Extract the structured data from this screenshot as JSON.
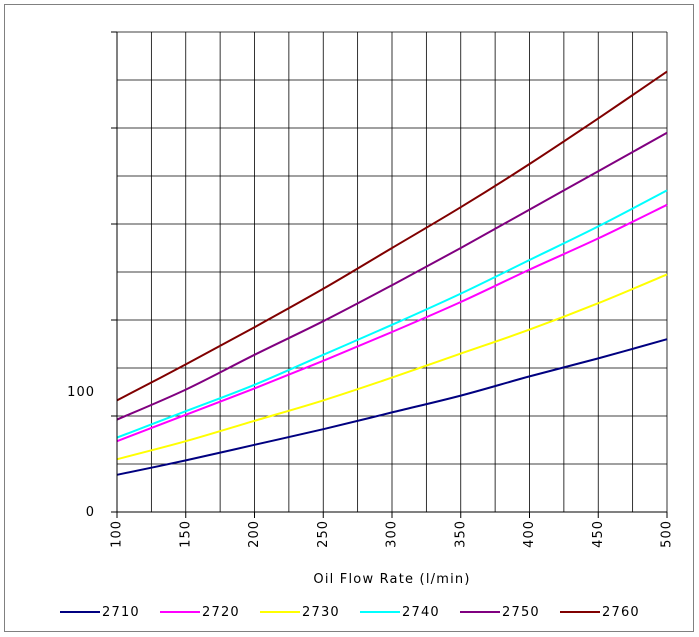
{
  "chart_data": {
    "type": "line",
    "title": "",
    "xlabel": "Oil Flow Rate (l/min)",
    "ylabel": "",
    "xlim": [
      100,
      500
    ],
    "ylim": [
      0,
      400
    ],
    "x_ticks": [
      "100",
      "150",
      "200",
      "250",
      "300",
      "350",
      "400",
      "450",
      "500"
    ],
    "y_tick_labels": [
      {
        "value": 0,
        "label": "0"
      },
      {
        "value": 100,
        "label": "100"
      }
    ],
    "grid": true,
    "legend_position": "bottom",
    "x": [
      100,
      150,
      200,
      250,
      300,
      350,
      400,
      450,
      500
    ],
    "series": [
      {
        "name": "2710",
        "color": "#000080",
        "values": [
          31,
          43,
          56,
          69,
          83,
          97,
          113,
          128,
          144
        ]
      },
      {
        "name": "2720",
        "color": "#ff00ff",
        "values": [
          59,
          81,
          103,
          126,
          150,
          175,
          202,
          228,
          256
        ]
      },
      {
        "name": "2730",
        "color": "#ffff00",
        "values": [
          44,
          59,
          76,
          93,
          112,
          132,
          152,
          174,
          198
        ]
      },
      {
        "name": "2740",
        "color": "#00ffff",
        "values": [
          62,
          84,
          106,
          131,
          156,
          182,
          210,
          238,
          268
        ]
      },
      {
        "name": "2750",
        "color": "#800080",
        "values": [
          77,
          102,
          131,
          159,
          189,
          220,
          252,
          284,
          316
        ]
      },
      {
        "name": "2760",
        "color": "#800000",
        "values": [
          93,
          123,
          154,
          186,
          220,
          254,
          290,
          328,
          367
        ]
      }
    ]
  }
}
